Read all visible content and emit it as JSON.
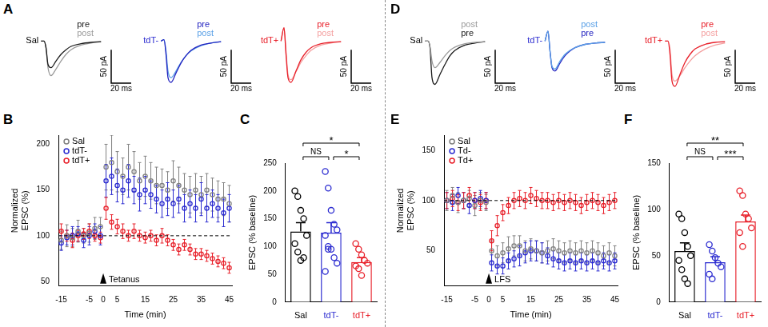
{
  "chart_data": [
    {
      "panel": "A",
      "type": "line",
      "title": "Sal",
      "color": "#000000",
      "tick_labels": false,
      "grid": false,
      "x": [
        0,
        3,
        5,
        7,
        10,
        15,
        20,
        25,
        30,
        40,
        50,
        60
      ],
      "xlim": [
        -25,
        95
      ],
      "ylim": [
        -80,
        40
      ],
      "series": [
        {
          "name": "pre",
          "color": "#1a1a1a",
          "values": [
            0,
            0,
            -10,
            -35,
            -40,
            -30,
            -20,
            -13,
            -8,
            -4,
            -2,
            -1
          ]
        },
        {
          "name": "post",
          "color": "#9a9a9a",
          "values": [
            0,
            0,
            -10,
            -40,
            -52,
            -42,
            -30,
            -20,
            -13,
            -6,
            -3,
            -1
          ]
        }
      ],
      "scale_bar": {
        "x": 20,
        "y": 50,
        "x_label": "20 ms",
        "y_label": "50 pA"
      }
    },
    {
      "type": "line",
      "title": "tdT-",
      "color": "#2b2bd0",
      "tick_labels": false,
      "grid": false,
      "x": [
        0,
        3,
        5,
        7,
        10,
        15,
        20,
        25,
        30,
        40,
        50,
        60
      ],
      "xlim": [
        -25,
        95
      ],
      "ylim": [
        -80,
        40
      ],
      "series": [
        {
          "name": "pre",
          "color": "#2323c0",
          "values": [
            0,
            2,
            -20,
            -55,
            -62,
            -48,
            -33,
            -22,
            -14,
            -6,
            -3,
            -1
          ]
        },
        {
          "name": "post",
          "color": "#5aa0e6",
          "values": [
            0,
            2,
            -15,
            -45,
            -55,
            -45,
            -32,
            -22,
            -15,
            -7,
            -3,
            -1
          ]
        }
      ],
      "scale_bar": {
        "x": 20,
        "y": 50,
        "x_label": "20 ms",
        "y_label": "50 pA"
      }
    },
    {
      "type": "line",
      "title": "tdT+",
      "color": "#e8202a",
      "tick_labels": false,
      "grid": false,
      "x": [
        0,
        3,
        5,
        7,
        10,
        15,
        20,
        25,
        30,
        40,
        50,
        60
      ],
      "xlim": [
        -25,
        95
      ],
      "ylim": [
        -80,
        40
      ],
      "series": [
        {
          "name": "pre",
          "color": "#e8202a",
          "values": [
            0,
            20,
            -20,
            -55,
            -62,
            -45,
            -28,
            -17,
            -10,
            -4,
            -2,
            -1
          ]
        },
        {
          "name": "post",
          "color": "#f4a0a0",
          "values": [
            0,
            20,
            -15,
            -50,
            -58,
            -46,
            -32,
            -22,
            -14,
            -6,
            -3,
            -1
          ]
        }
      ],
      "scale_bar": {
        "x": 20,
        "y": 50,
        "x_label": "20 ms",
        "y_label": "50 pA"
      }
    },
    {
      "panel": "B",
      "type": "scatter",
      "marker": "circle",
      "grid": false,
      "legend": "top-left",
      "x_label": "Time (min)",
      "y_label": [
        "Normalized",
        "EPSC (%)"
      ],
      "x": [
        -15,
        -13,
        -11,
        -9,
        -7,
        -5,
        -3,
        -1,
        1,
        3,
        5,
        7,
        9,
        11,
        13,
        15,
        17,
        19,
        21,
        23,
        25,
        27,
        29,
        31,
        33,
        35,
        37,
        39,
        41,
        43,
        45
      ],
      "xlim": [
        -16,
        46
      ],
      "xticks": [
        -15,
        -5,
        0,
        5,
        15,
        25,
        35,
        45
      ],
      "ylim": [
        45,
        210
      ],
      "yticks": [
        50,
        100,
        150,
        200
      ],
      "reference_line": 100,
      "stimulus": {
        "x": 0,
        "label": "Tetanus"
      },
      "series": [
        {
          "name": "Sal",
          "color": "#808080",
          "values": [
            95,
            100,
            98,
            105,
            100,
            103,
            108,
            110,
            175,
            180,
            170,
            165,
            175,
            170,
            160,
            165,
            160,
            155,
            155,
            150,
            160,
            155,
            150,
            145,
            150,
            145,
            150,
            145,
            140,
            140,
            135
          ],
          "errors": [
            10,
            12,
            10,
            12,
            8,
            10,
            12,
            10,
            25,
            30,
            22,
            20,
            25,
            22,
            20,
            22,
            20,
            20,
            18,
            20,
            22,
            20,
            18,
            20,
            18,
            20,
            18,
            18,
            20,
            18,
            20
          ]
        },
        {
          "name": "tdT-",
          "color": "#2b2bd0",
          "values": [
            92,
            98,
            100,
            102,
            95,
            100,
            105,
            100,
            160,
            165,
            155,
            150,
            160,
            150,
            145,
            150,
            145,
            140,
            135,
            140,
            135,
            140,
            130,
            135,
            130,
            140,
            130,
            135,
            130,
            125,
            130
          ],
          "errors": [
            8,
            8,
            10,
            8,
            8,
            10,
            8,
            10,
            18,
            20,
            18,
            15,
            18,
            15,
            18,
            15,
            15,
            15,
            15,
            18,
            15,
            15,
            15,
            15,
            15,
            18,
            15,
            15,
            15,
            15,
            15
          ]
        },
        {
          "name": "tdT+",
          "color": "#e8202a",
          "values": [
            105,
            100,
            95,
            100,
            102,
            105,
            100,
            98,
            130,
            115,
            110,
            105,
            100,
            105,
            100,
            98,
            100,
            95,
            100,
            95,
            90,
            85,
            90,
            85,
            80,
            80,
            78,
            75,
            72,
            70,
            65
          ],
          "errors": [
            8,
            6,
            8,
            6,
            6,
            8,
            6,
            6,
            12,
            8,
            8,
            8,
            6,
            8,
            6,
            6,
            6,
            6,
            8,
            6,
            6,
            6,
            6,
            6,
            6,
            6,
            6,
            6,
            6,
            6,
            6
          ]
        }
      ]
    },
    {
      "panel": "C",
      "type": "bar",
      "grid": false,
      "y_label": "EPSC (% baseline)",
      "categories": [
        "Sal",
        "tdT-",
        "tdT+"
      ],
      "values": [
        127,
        125,
        72
      ],
      "errors": [
        16,
        18,
        8
      ],
      "colors": [
        "#000000",
        "#2b2bd0",
        "#e8202a"
      ],
      "points": [
        [
          200,
          190,
          165,
          150,
          120,
          105,
          90,
          75,
          80
        ],
        [
          235,
          205,
          165,
          140,
          130,
          120,
          100,
          95,
          80,
          70,
          55,
          95
        ],
        [
          105,
          95,
          85,
          75,
          70,
          65,
          60,
          48
        ]
      ],
      "ylim": [
        0,
        250
      ],
      "yticks": [
        0,
        50,
        100,
        150,
        200,
        250
      ],
      "comparisons": [
        {
          "from": "Sal",
          "to": "tdT+",
          "label": "*"
        },
        {
          "from": "Sal",
          "to": "tdT-",
          "label": "NS"
        },
        {
          "from": "tdT-",
          "to": "tdT+",
          "label": "*"
        }
      ]
    },
    {
      "panel": "D",
      "type": "line",
      "title": "Sal",
      "color": "#000000",
      "tick_labels": false,
      "grid": false,
      "x": [
        0,
        3,
        5,
        7,
        10,
        15,
        20,
        25,
        30,
        40,
        50,
        60
      ],
      "xlim": [
        -25,
        95
      ],
      "ylim": [
        -80,
        40
      ],
      "series": [
        {
          "name": "post",
          "color": "#9a9a9a",
          "values": [
            0,
            0,
            -8,
            -30,
            -40,
            -32,
            -22,
            -14,
            -9,
            -4,
            -2,
            -1
          ]
        },
        {
          "name": "pre",
          "color": "#1a1a1a",
          "values": [
            0,
            0,
            -10,
            -55,
            -65,
            -50,
            -35,
            -22,
            -14,
            -6,
            -3,
            -1
          ]
        }
      ],
      "scale_bar": {
        "x": 20,
        "y": 50,
        "x_label": "20 ms",
        "y_label": "50 pA"
      }
    },
    {
      "type": "line",
      "title": "tdT-",
      "color": "#2b2bd0",
      "tick_labels": false,
      "grid": false,
      "x": [
        0,
        3,
        5,
        7,
        10,
        15,
        20,
        25,
        30,
        40,
        50,
        60
      ],
      "xlim": [
        -25,
        95
      ],
      "ylim": [
        -80,
        40
      ],
      "series": [
        {
          "name": "post",
          "color": "#5aa0e6",
          "values": [
            0,
            15,
            -15,
            -38,
            -42,
            -30,
            -20,
            -14,
            -10,
            -5,
            -3,
            -2
          ]
        },
        {
          "name": "pre",
          "color": "#2323c0",
          "values": [
            0,
            15,
            -15,
            -40,
            -45,
            -33,
            -22,
            -15,
            -10,
            -5,
            -3,
            -2
          ]
        }
      ],
      "scale_bar": {
        "x": 20,
        "y": 50,
        "x_label": "20 ms",
        "y_label": "50 pA"
      }
    },
    {
      "type": "line",
      "title": "tdT+",
      "color": "#e8202a",
      "tick_labels": false,
      "grid": false,
      "x": [
        0,
        3,
        5,
        7,
        10,
        15,
        20,
        25,
        30,
        40,
        50,
        60
      ],
      "xlim": [
        -25,
        95
      ],
      "ylim": [
        -80,
        40
      ],
      "series": [
        {
          "name": "pre",
          "color": "#e8202a",
          "values": [
            0,
            0,
            -20,
            -60,
            -68,
            -50,
            -32,
            -20,
            -12,
            -5,
            -2,
            -1
          ]
        },
        {
          "name": "post",
          "color": "#f4a0a0",
          "values": [
            0,
            0,
            -12,
            -50,
            -60,
            -52,
            -40,
            -30,
            -22,
            -12,
            -6,
            -3
          ]
        }
      ],
      "scale_bar": {
        "x": 20,
        "y": 50,
        "x_label": "20 ms",
        "y_label": "50 pA"
      }
    },
    {
      "panel": "E",
      "type": "scatter",
      "marker": "circle",
      "grid": false,
      "legend": "top-left",
      "x_label": "Time (min)",
      "y_label": [
        "Normalized",
        "EPSC (%)"
      ],
      "x": [
        -15,
        -13,
        -11,
        -9,
        -7,
        -5,
        -3,
        -1,
        1,
        3,
        5,
        7,
        9,
        11,
        13,
        15,
        17,
        19,
        21,
        23,
        25,
        27,
        29,
        31,
        33,
        35,
        37,
        39,
        41,
        43,
        45
      ],
      "xlim": [
        -16,
        46
      ],
      "xticks": [
        -15,
        -5,
        0,
        5,
        15,
        25,
        35,
        45
      ],
      "ylim": [
        15,
        165
      ],
      "yticks": [
        50,
        100,
        150
      ],
      "reference_line": 100,
      "stimulus": {
        "x": 0,
        "label": "LFS"
      },
      "series": [
        {
          "name": "Sal",
          "color": "#808080",
          "values": [
            100,
            105,
            98,
            100,
            102,
            95,
            100,
            98,
            50,
            45,
            48,
            52,
            55,
            55,
            50,
            52,
            50,
            48,
            50,
            52,
            50,
            48,
            50,
            48,
            50,
            48,
            50,
            48,
            45,
            48,
            45
          ],
          "errors": [
            10,
            8,
            10,
            8,
            8,
            10,
            8,
            8,
            10,
            10,
            10,
            12,
            10,
            10,
            10,
            10,
            10,
            10,
            10,
            10,
            10,
            10,
            10,
            10,
            10,
            10,
            10,
            10,
            10,
            10,
            10
          ]
        },
        {
          "name": "Td-",
          "color": "#2b2bd0",
          "values": [
            100,
            98,
            105,
            100,
            95,
            100,
            102,
            100,
            38,
            35,
            35,
            40,
            42,
            45,
            48,
            50,
            50,
            48,
            45,
            42,
            40,
            38,
            40,
            38,
            40,
            38,
            40,
            38,
            40,
            38,
            40
          ],
          "errors": [
            8,
            8,
            8,
            8,
            8,
            8,
            8,
            8,
            8,
            8,
            8,
            8,
            8,
            10,
            10,
            10,
            10,
            10,
            8,
            8,
            8,
            8,
            8,
            8,
            8,
            8,
            8,
            8,
            8,
            8,
            8
          ]
        },
        {
          "name": "Td+",
          "color": "#e8202a",
          "values": [
            100,
            102,
            98,
            100,
            105,
            100,
            98,
            100,
            60,
            75,
            88,
            95,
            100,
            102,
            100,
            105,
            102,
            100,
            100,
            98,
            100,
            98,
            100,
            98,
            95,
            98,
            100,
            98,
            95,
            98,
            100
          ],
          "errors": [
            8,
            8,
            8,
            8,
            8,
            8,
            8,
            8,
            10,
            10,
            8,
            8,
            8,
            8,
            8,
            8,
            8,
            8,
            8,
            8,
            8,
            8,
            8,
            8,
            8,
            8,
            8,
            8,
            8,
            8,
            8
          ]
        }
      ]
    },
    {
      "panel": "F",
      "type": "bar",
      "grid": false,
      "y_label": "EPSC (% baseline)",
      "categories": [
        "Sal",
        "tdT-",
        "tdT+"
      ],
      "values": [
        55,
        43,
        87
      ],
      "errors": [
        9,
        6,
        7
      ],
      "colors": [
        "#000000",
        "#2b2bd0",
        "#e8202a"
      ],
      "points": [
        [
          95,
          90,
          75,
          60,
          50,
          45,
          35,
          25,
          20
        ],
        [
          62,
          55,
          48,
          42,
          38,
          30,
          25
        ],
        [
          120,
          115,
          95,
          90,
          80,
          75,
          60
        ]
      ],
      "ylim": [
        0,
        150
      ],
      "yticks": [
        0,
        50,
        100,
        150
      ],
      "comparisons": [
        {
          "from": "Sal",
          "to": "tdT+",
          "label": "**"
        },
        {
          "from": "Sal",
          "to": "tdT-",
          "label": "NS"
        },
        {
          "from": "tdT-",
          "to": "tdT+",
          "label": "***"
        }
      ]
    }
  ]
}
